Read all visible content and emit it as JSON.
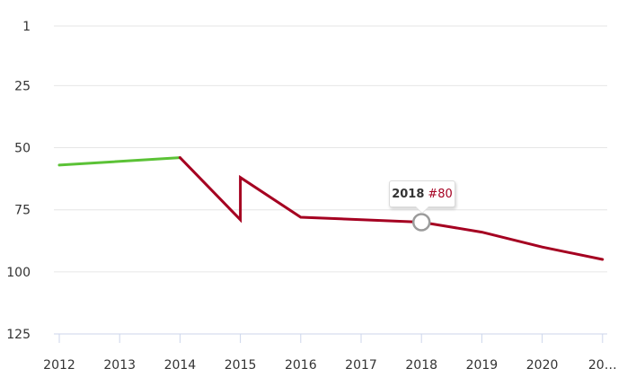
{
  "chart_data": {
    "type": "line",
    "title": "",
    "xlabel": "",
    "ylabel": "",
    "x_tick_labels": [
      "2012",
      "2013",
      "2014",
      "2015",
      "2016",
      "2017",
      "2018",
      "2019",
      "2020",
      "20…"
    ],
    "y_tick_labels": [
      "1",
      "25",
      "50",
      "75",
      "100",
      "125"
    ],
    "y_ticks": [
      1,
      25,
      50,
      75,
      100,
      125
    ],
    "ylim": [
      1,
      125
    ],
    "y_inverted": true,
    "grid": true,
    "series": [
      {
        "color": "#5bc236",
        "points": [
          [
            2012,
            57
          ],
          [
            2014,
            54
          ]
        ]
      },
      {
        "color": "#a50021",
        "points": [
          [
            2014,
            54
          ],
          [
            2015,
            79
          ],
          [
            2015,
            62
          ],
          [
            2016,
            78
          ],
          [
            2018,
            80
          ],
          [
            2019,
            84
          ],
          [
            2020,
            90
          ],
          [
            2021,
            95
          ]
        ]
      }
    ],
    "highlight": {
      "x": 2018,
      "y": 80
    },
    "tooltip": {
      "year": "2018",
      "rank": "#80"
    }
  }
}
